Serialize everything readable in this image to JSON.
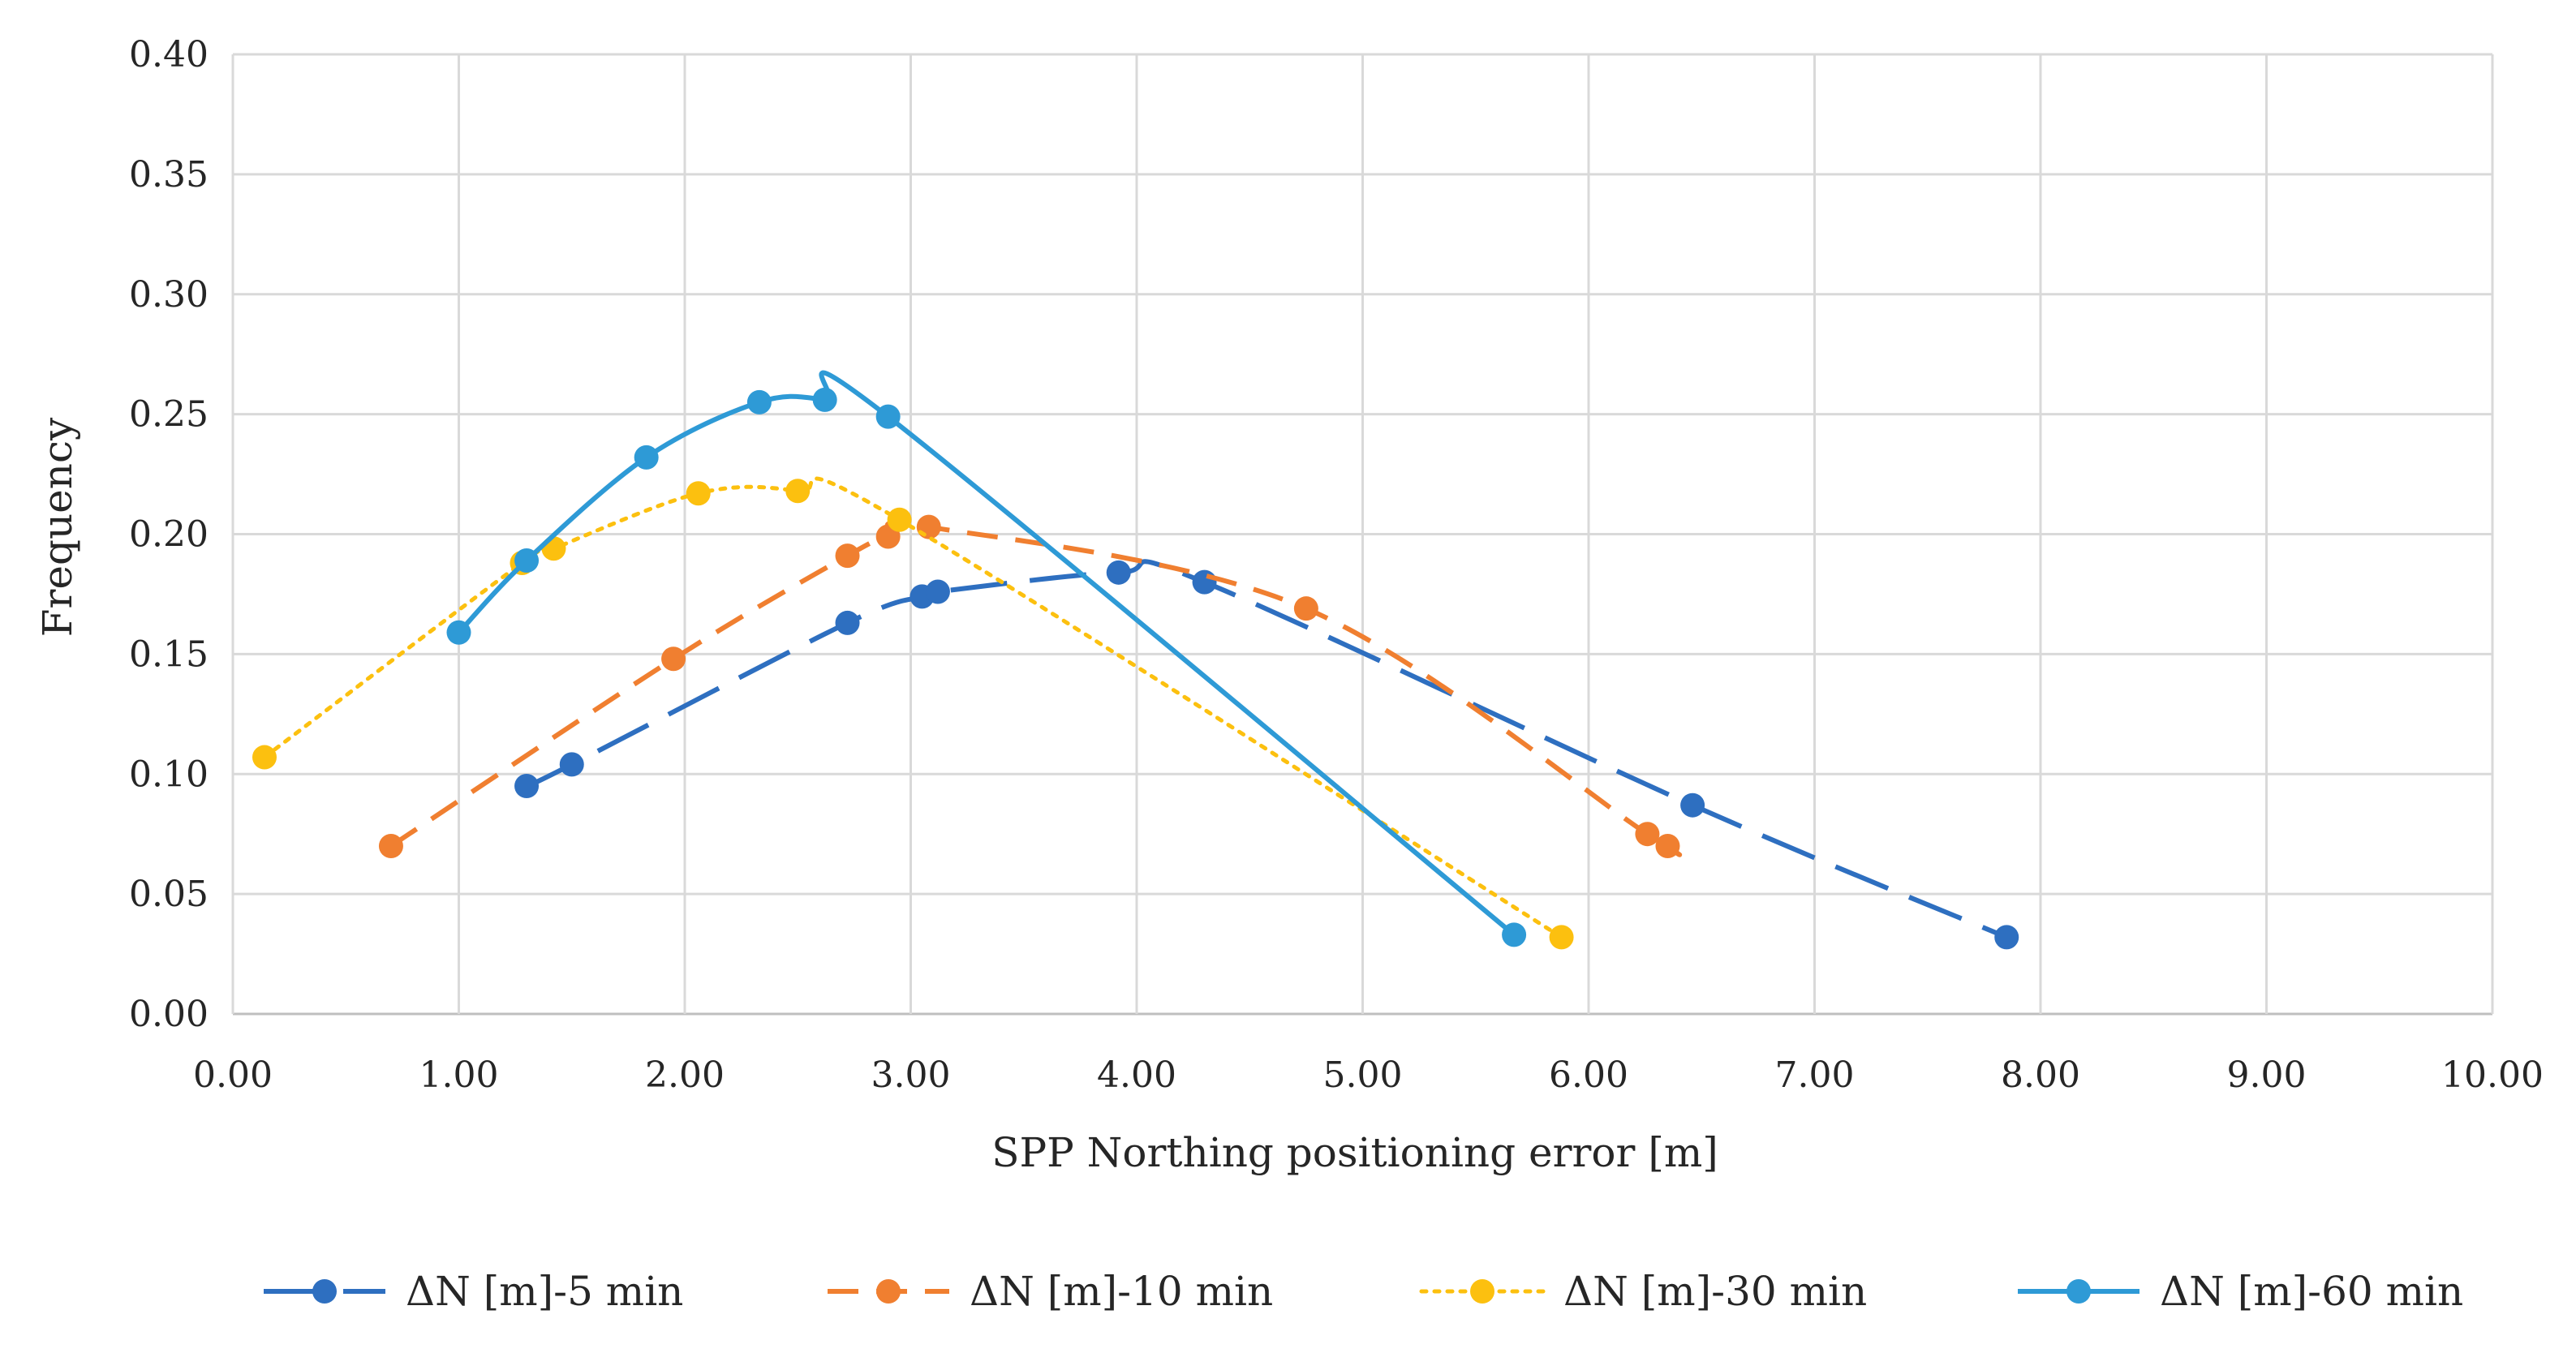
{
  "chart_data": {
    "type": "scatter",
    "title": "",
    "xlabel": "SPP Northing positioning error [m]",
    "ylabel": "Frequency",
    "xlim": [
      0,
      10
    ],
    "ylim": [
      0,
      0.4
    ],
    "x_ticks": [
      "0.00",
      "1.00",
      "2.00",
      "3.00",
      "4.00",
      "5.00",
      "6.00",
      "7.00",
      "8.00",
      "9.00",
      "10.00"
    ],
    "y_ticks": [
      "0.00",
      "0.05",
      "0.10",
      "0.15",
      "0.20",
      "0.25",
      "0.30",
      "0.35",
      "0.40"
    ],
    "grid": true,
    "legend_position": "bottom",
    "series": [
      {
        "name": "ΔN [m]-5 min",
        "color": "#2e6fc0",
        "line_style": "long-dash",
        "points": [
          [
            1.3,
            0.095
          ],
          [
            1.5,
            0.104
          ],
          [
            2.72,
            0.163
          ],
          [
            3.05,
            0.174
          ],
          [
            3.12,
            0.176
          ],
          [
            3.92,
            0.184
          ],
          [
            4.3,
            0.18
          ],
          [
            6.46,
            0.087
          ],
          [
            7.85,
            0.032
          ]
        ]
      },
      {
        "name": "ΔN [m]-10 min",
        "color": "#f07f30",
        "line_style": "dash",
        "points": [
          [
            0.7,
            0.07
          ],
          [
            1.95,
            0.148
          ],
          [
            2.72,
            0.191
          ],
          [
            2.9,
            0.199
          ],
          [
            3.08,
            0.203
          ],
          [
            4.75,
            0.169
          ],
          [
            6.26,
            0.075
          ],
          [
            6.35,
            0.07
          ]
        ]
      },
      {
        "name": "ΔN [m]-30 min",
        "color": "#fcc00f",
        "line_style": "dot",
        "points": [
          [
            0.14,
            0.107
          ],
          [
            1.28,
            0.188
          ],
          [
            1.42,
            0.194
          ],
          [
            2.06,
            0.217
          ],
          [
            2.5,
            0.218
          ],
          [
            2.95,
            0.206
          ],
          [
            5.88,
            0.032
          ]
        ]
      },
      {
        "name": "ΔN [m]-60 min",
        "color": "#2e9ad6",
        "line_style": "solid",
        "points": [
          [
            1.0,
            0.159
          ],
          [
            1.3,
            0.189
          ],
          [
            1.83,
            0.232
          ],
          [
            2.33,
            0.255
          ],
          [
            2.62,
            0.256
          ],
          [
            2.9,
            0.249
          ],
          [
            5.67,
            0.033
          ]
        ]
      }
    ]
  }
}
